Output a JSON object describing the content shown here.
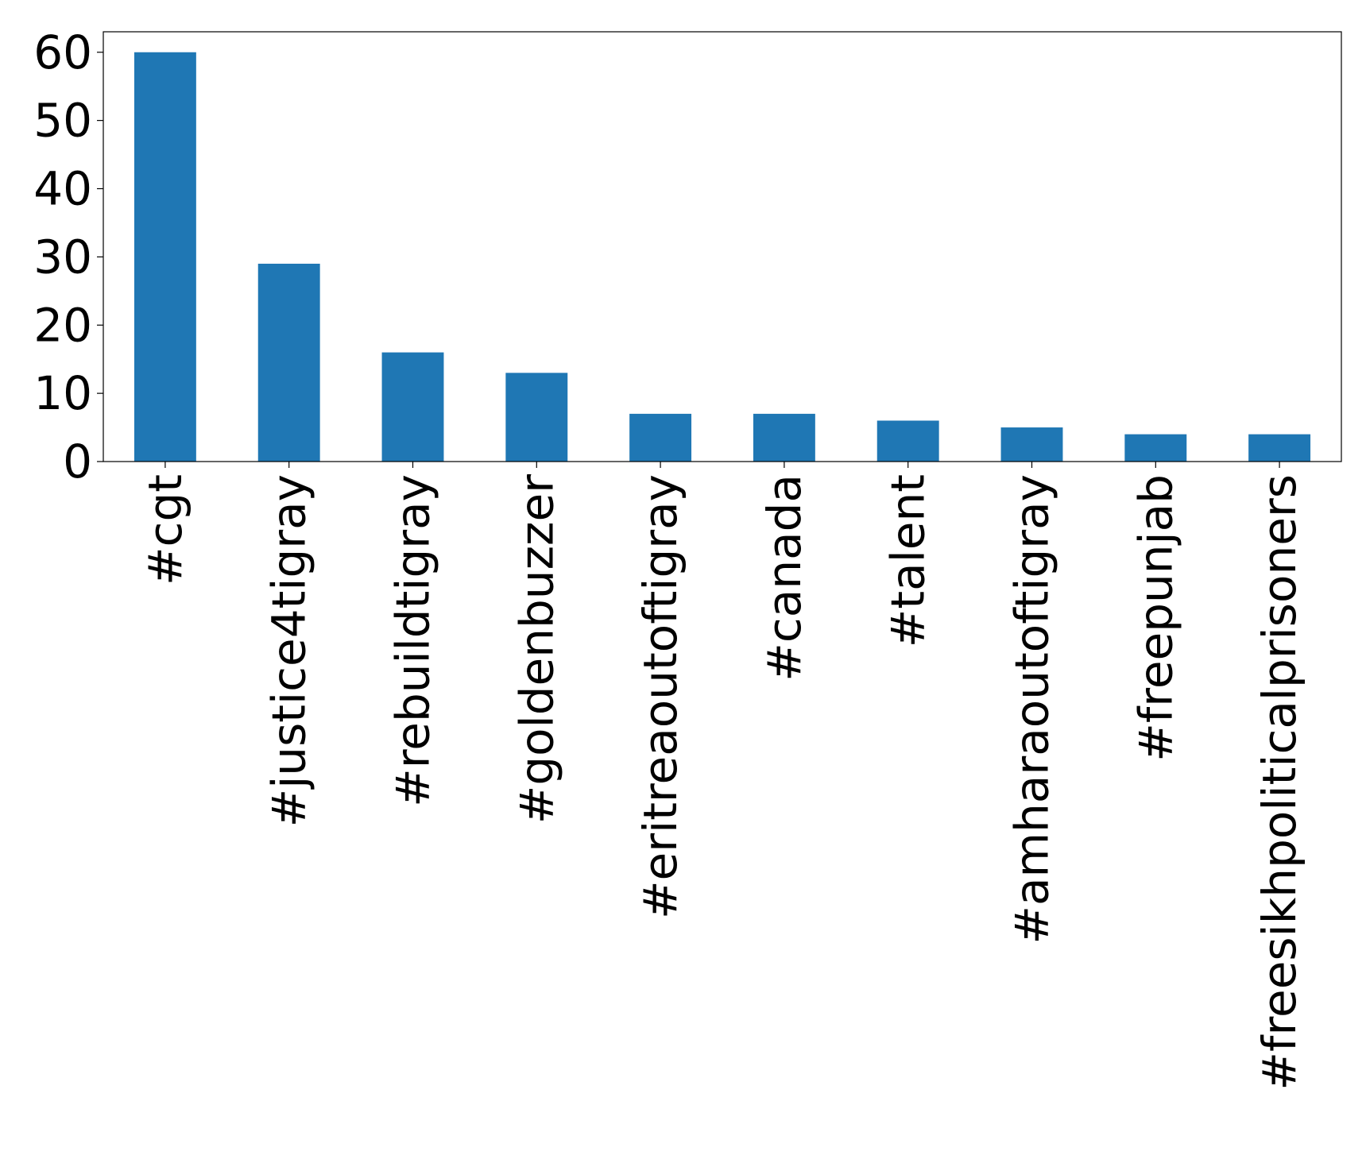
{
  "chart_data": {
    "type": "bar",
    "categories": [
      "#cgt",
      "#justice4tigray",
      "#rebuildtigray",
      "#goldenbuzzer",
      "#eritreaoutoftigray",
      "#canada",
      "#talent",
      "#amharaoutoftigray",
      "#freepunjab",
      "#freesikhpoliticalprisoners"
    ],
    "values": [
      60,
      29,
      16,
      13,
      7,
      7,
      6,
      5,
      4,
      4
    ],
    "title": "",
    "xlabel": "",
    "ylabel": "",
    "ylim": [
      0,
      63
    ],
    "yticks": [
      0,
      10,
      20,
      30,
      40,
      50,
      60
    ],
    "bar_color": "#1f77b4",
    "grid": false,
    "legend": "none"
  }
}
